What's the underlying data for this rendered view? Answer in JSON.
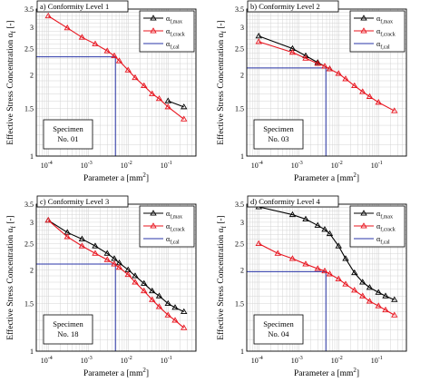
{
  "shared": {
    "ylabel": "Effective Stress Concentration α",
    "ylabel_sub": "f",
    "ylabel_unit": " [-]",
    "xlabel": "Parameter a [mm",
    "xlabel_sup": "2",
    "xlabel_close": "]",
    "y_ticks": [
      "1",
      "1.5",
      "2",
      "2.5",
      "3",
      "3.5"
    ],
    "x_ticks": [
      {
        "base": "10",
        "exp": "-4"
      },
      {
        "base": "10",
        "exp": "-3"
      },
      {
        "base": "10",
        "exp": "-2"
      },
      {
        "base": "10",
        "exp": "-1"
      }
    ],
    "legend": [
      {
        "main": "α",
        "sub": "f,max"
      },
      {
        "main": "α",
        "sub": "f,crack"
      },
      {
        "main": "α",
        "sub": "f,cal"
      }
    ],
    "colors": {
      "max": "#000000",
      "crack": "#e8141e",
      "cal": "#2a36a8",
      "grid": "#d4d4d4"
    }
  },
  "chart_data": [
    {
      "type": "line",
      "title": "a) Conformity Level 1",
      "specimen": [
        "Specimen",
        "No. 01"
      ],
      "xscale": "log",
      "yscale": "log",
      "xlim": [
        5e-05,
        0.5
      ],
      "ylim": [
        1,
        3.5
      ],
      "grid": true,
      "legend": "top-right",
      "series": [
        {
          "key": "max",
          "x": [
            0.1,
            0.25
          ],
          "y": [
            1.6,
            1.52
          ]
        },
        {
          "key": "crack",
          "x": [
            0.0001,
            0.0003,
            0.0007,
            0.0015,
            0.003,
            0.0045,
            0.006,
            0.01,
            0.015,
            0.025,
            0.04,
            0.06,
            0.1,
            0.25
          ],
          "y": [
            3.3,
            2.98,
            2.75,
            2.6,
            2.45,
            2.35,
            2.25,
            2.08,
            1.95,
            1.82,
            1.7,
            1.63,
            1.52,
            1.37
          ]
        }
      ],
      "cal": {
        "x": 0.0048,
        "y": 2.33
      }
    },
    {
      "type": "line",
      "title": "b) Conformity Level 2",
      "specimen": [
        "Specimen",
        "No. 03"
      ],
      "xscale": "log",
      "yscale": "log",
      "xlim": [
        5e-05,
        0.5
      ],
      "ylim": [
        1,
        3.5
      ],
      "grid": true,
      "legend": "top-right",
      "series": [
        {
          "key": "max",
          "x": [
            0.0001,
            0.0007,
            0.0015,
            0.003,
            0.006
          ],
          "y": [
            2.78,
            2.5,
            2.35,
            2.22,
            2.1
          ]
        },
        {
          "key": "crack",
          "x": [
            0.0001,
            0.0007,
            0.0015,
            0.003,
            0.0045,
            0.006,
            0.01,
            0.015,
            0.025,
            0.04,
            0.06,
            0.1,
            0.25
          ],
          "y": [
            2.65,
            2.42,
            2.3,
            2.2,
            2.15,
            2.1,
            2.02,
            1.93,
            1.82,
            1.73,
            1.66,
            1.58,
            1.47
          ]
        }
      ],
      "cal": {
        "x": 0.0048,
        "y": 2.12
      }
    },
    {
      "type": "line",
      "title": "c) Conformity Level 3",
      "specimen": [
        "Specimen",
        "No. 18"
      ],
      "xscale": "log",
      "yscale": "log",
      "xlim": [
        5e-05,
        0.5
      ],
      "ylim": [
        1,
        3.5
      ],
      "grid": true,
      "legend": "top-right",
      "series": [
        {
          "key": "max",
          "x": [
            0.0001,
            0.0003,
            0.0007,
            0.0015,
            0.003,
            0.0045,
            0.006,
            0.01,
            0.015,
            0.025,
            0.04,
            0.06,
            0.1,
            0.15,
            0.25
          ],
          "y": [
            3.05,
            2.75,
            2.6,
            2.45,
            2.3,
            2.2,
            2.12,
            2.0,
            1.9,
            1.78,
            1.67,
            1.6,
            1.5,
            1.45,
            1.4
          ]
        },
        {
          "key": "crack",
          "x": [
            0.0001,
            0.0003,
            0.0007,
            0.0015,
            0.003,
            0.0045,
            0.006,
            0.01,
            0.015,
            0.025,
            0.04,
            0.06,
            0.1,
            0.15,
            0.25
          ],
          "y": [
            3.05,
            2.65,
            2.45,
            2.3,
            2.18,
            2.1,
            2.04,
            1.92,
            1.8,
            1.67,
            1.55,
            1.46,
            1.36,
            1.3,
            1.22
          ]
        }
      ],
      "cal": {
        "x": 0.0048,
        "y": 2.1
      }
    },
    {
      "type": "line",
      "title": "d) Conformity Level 4",
      "specimen": [
        "Specimen",
        "No. 04"
      ],
      "xscale": "log",
      "yscale": "log",
      "xlim": [
        5e-05,
        0.5
      ],
      "ylim": [
        1,
        3.5
      ],
      "grid": true,
      "legend": "top-right",
      "series": [
        {
          "key": "max",
          "x": [
            0.0001,
            0.0007,
            0.0015,
            0.003,
            0.0045,
            0.006,
            0.01,
            0.015,
            0.025,
            0.04,
            0.06,
            0.1,
            0.15,
            0.25
          ],
          "y": [
            3.42,
            3.2,
            3.08,
            2.92,
            2.82,
            2.72,
            2.45,
            2.2,
            1.95,
            1.8,
            1.72,
            1.65,
            1.6,
            1.55
          ]
        },
        {
          "key": "crack",
          "x": [
            0.0001,
            0.0003,
            0.0007,
            0.0015,
            0.003,
            0.0045,
            0.006,
            0.01,
            0.015,
            0.025,
            0.04,
            0.06,
            0.1,
            0.15,
            0.25
          ],
          "y": [
            2.5,
            2.3,
            2.2,
            2.1,
            2.02,
            1.98,
            1.93,
            1.85,
            1.77,
            1.68,
            1.6,
            1.53,
            1.47,
            1.42,
            1.36
          ]
        }
      ],
      "cal": {
        "x": 0.0048,
        "y": 1.97
      }
    }
  ]
}
